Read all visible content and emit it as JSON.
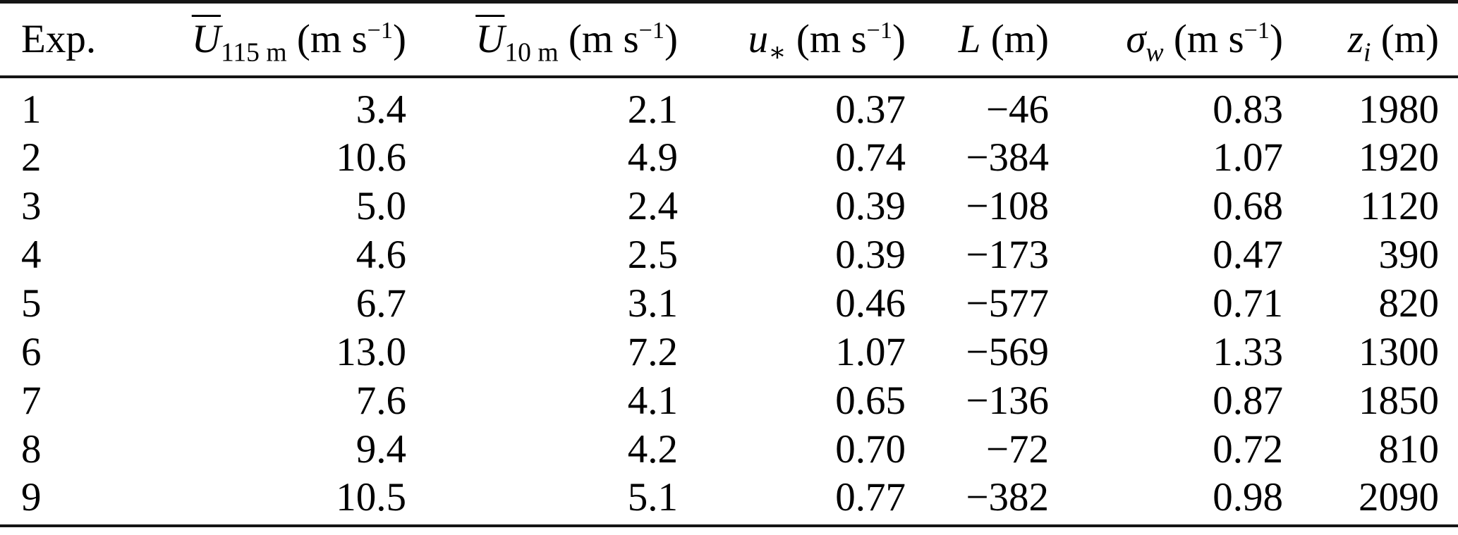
{
  "page": {
    "background": "#ffffff",
    "text_color": "#000000",
    "rule_color": "#151515"
  },
  "table": {
    "headers": [
      {
        "name": "exp",
        "segments": [
          {
            "t": "Exp.",
            "style": "roman"
          }
        ]
      },
      {
        "name": "u-115m",
        "segments": [
          {
            "t": "U",
            "style": "italic-overline"
          },
          {
            "t": "115 m",
            "style": "sub"
          },
          {
            "t": " (m s",
            "style": "roman"
          },
          {
            "t": "−1",
            "style": "sup"
          },
          {
            "t": ")",
            "style": "roman"
          }
        ]
      },
      {
        "name": "u-10m",
        "segments": [
          {
            "t": "U",
            "style": "italic-overline"
          },
          {
            "t": "10 m",
            "style": "sub"
          },
          {
            "t": " (m s",
            "style": "roman"
          },
          {
            "t": "−1",
            "style": "sup"
          },
          {
            "t": ")",
            "style": "roman"
          }
        ]
      },
      {
        "name": "u-star",
        "segments": [
          {
            "t": "u",
            "style": "italic"
          },
          {
            "t": "∗",
            "style": "sub"
          },
          {
            "t": " (m s",
            "style": "roman"
          },
          {
            "t": "−1",
            "style": "sup"
          },
          {
            "t": ")",
            "style": "roman"
          }
        ]
      },
      {
        "name": "obukhov-L",
        "segments": [
          {
            "t": "L",
            "style": "italic"
          },
          {
            "t": " (m)",
            "style": "roman"
          }
        ]
      },
      {
        "name": "sigma-w",
        "segments": [
          {
            "t": "σ",
            "style": "italic"
          },
          {
            "t": "w",
            "style": "sub-italic"
          },
          {
            "t": " (m s",
            "style": "roman"
          },
          {
            "t": "−1",
            "style": "sup"
          },
          {
            "t": ")",
            "style": "roman"
          }
        ]
      },
      {
        "name": "z-i",
        "segments": [
          {
            "t": "z",
            "style": "italic"
          },
          {
            "t": "i",
            "style": "sub-italic"
          },
          {
            "t": " (m)",
            "style": "roman"
          }
        ]
      }
    ],
    "rows": [
      [
        "1",
        "3.4",
        "2.1",
        "0.37",
        "−46",
        "0.83",
        "1980"
      ],
      [
        "2",
        "10.6",
        "4.9",
        "0.74",
        "−384",
        "1.07",
        "1920"
      ],
      [
        "3",
        "5.0",
        "2.4",
        "0.39",
        "−108",
        "0.68",
        "1120"
      ],
      [
        "4",
        "4.6",
        "2.5",
        "0.39",
        "−173",
        "0.47",
        "390"
      ],
      [
        "5",
        "6.7",
        "3.1",
        "0.46",
        "−577",
        "0.71",
        "820"
      ],
      [
        "6",
        "13.0",
        "7.2",
        "1.07",
        "−569",
        "1.33",
        "1300"
      ],
      [
        "7",
        "7.6",
        "4.1",
        "0.65",
        "−136",
        "0.87",
        "1850"
      ],
      [
        "8",
        "9.4",
        "4.2",
        "0.70",
        "−72",
        "0.72",
        "810"
      ],
      [
        "9",
        "10.5",
        "5.1",
        "0.77",
        "−382",
        "0.98",
        "2090"
      ]
    ]
  }
}
